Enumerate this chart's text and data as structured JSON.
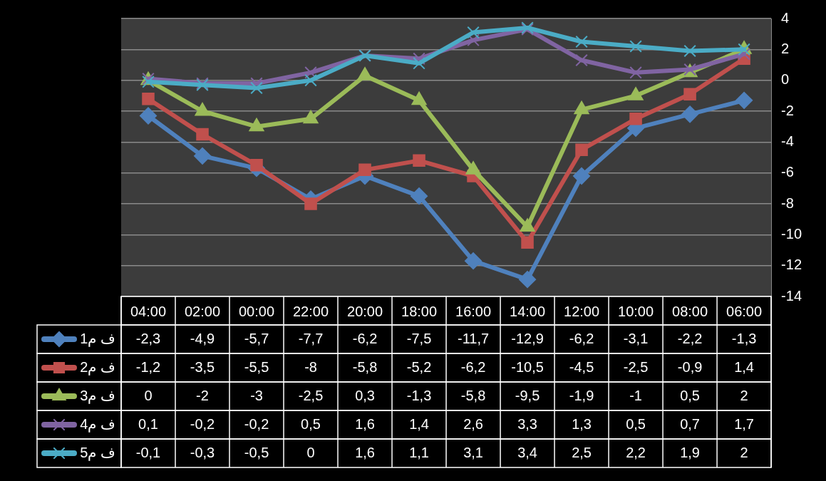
{
  "chart_data": {
    "type": "line",
    "categories": [
      "04:00",
      "02:00",
      "00:00",
      "22:00",
      "20:00",
      "18:00",
      "16:00",
      "14:00",
      "12:00",
      "10:00",
      "08:00",
      "06:00"
    ],
    "series": [
      {
        "name": "ف م1",
        "color": "#4f81bd",
        "marker": "diamond",
        "values": [
          -2.3,
          -4.9,
          -5.7,
          -7.7,
          -6.2,
          -7.5,
          -11.7,
          -12.9,
          -6.2,
          -3.1,
          -2.2,
          -1.3
        ],
        "value_labels": [
          "-2,3",
          "-4,9",
          "-5,7",
          "-7,7",
          "-6,2",
          "-7,5",
          "-11,7",
          "-12,9",
          "-6,2",
          "-3,1",
          "-2,2",
          "-1,3"
        ]
      },
      {
        "name": "ف م2",
        "color": "#c0504d",
        "marker": "square",
        "values": [
          -1.2,
          -3.5,
          -5.5,
          -8,
          -5.8,
          -5.2,
          -6.2,
          -10.5,
          -4.5,
          -2.5,
          -0.9,
          1.4
        ],
        "value_labels": [
          "-1,2",
          "-3,5",
          "-5,5",
          "-8",
          "-5,8",
          "-5,2",
          "-6,2",
          "-10,5",
          "-4,5",
          "-2,5",
          "-0,9",
          "1,4"
        ]
      },
      {
        "name": "ف م3",
        "color": "#9bbb59",
        "marker": "triangle",
        "values": [
          0,
          -2,
          -3,
          -2.5,
          0.3,
          -1.3,
          -5.8,
          -9.5,
          -1.9,
          -1,
          0.5,
          2
        ],
        "value_labels": [
          "0",
          "-2",
          "-3",
          "-2,5",
          "0,3",
          "-1,3",
          "-5,8",
          "-9,5",
          "-1,9",
          "-1",
          "0,5",
          "2"
        ]
      },
      {
        "name": "ف م4",
        "color": "#8064a2",
        "marker": "cross",
        "values": [
          0.1,
          -0.2,
          -0.2,
          0.5,
          1.6,
          1.4,
          2.6,
          3.3,
          1.3,
          0.5,
          0.7,
          1.7
        ],
        "value_labels": [
          "0,1",
          "-0,2",
          "-0,2",
          "0,5",
          "1,6",
          "1,4",
          "2,6",
          "3,3",
          "1,3",
          "0,5",
          "0,7",
          "1,7"
        ]
      },
      {
        "name": "ف م5",
        "color": "#4bacc6",
        "marker": "cross",
        "values": [
          -0.1,
          -0.3,
          -0.5,
          0,
          1.6,
          1.1,
          3.1,
          3.4,
          2.5,
          2.2,
          1.9,
          2
        ],
        "value_labels": [
          "-0,1",
          "-0,3",
          "-0,5",
          "0",
          "1,6",
          "1,1",
          "3,1",
          "3,4",
          "2,5",
          "2,2",
          "1,9",
          "2"
        ]
      }
    ],
    "ylim": [
      -14,
      4
    ],
    "yticks": [
      -14,
      -12,
      -10,
      -8,
      -6,
      -4,
      -2,
      0,
      2,
      4
    ],
    "grid": "y",
    "legend": "bottom"
  }
}
